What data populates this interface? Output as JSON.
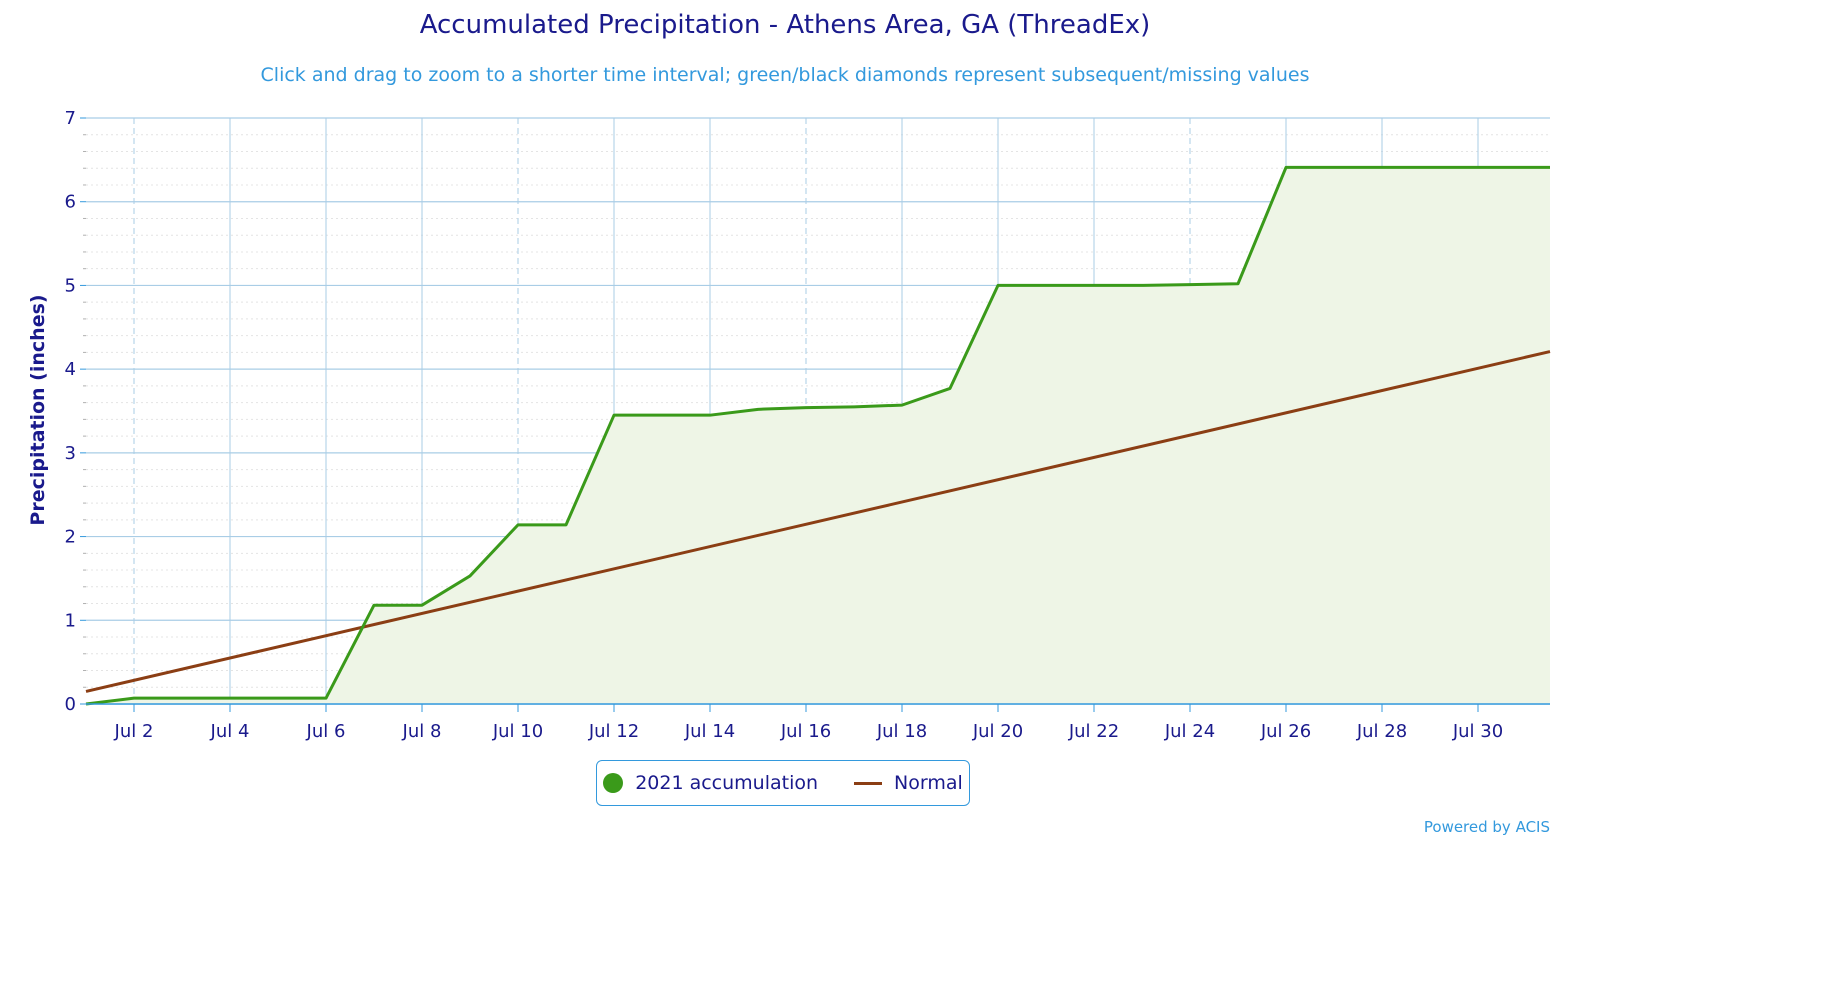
{
  "chart_data": {
    "type": "area",
    "title": "Accumulated Precipitation - Athens Area, GA (ThreadEx)",
    "subtitle": "Click and drag to zoom to a shorter time interval; green/black diamonds represent subsequent/missing values",
    "ylabel": "Precipitation (inches)",
    "xlabel": "",
    "ylim": [
      0,
      7
    ],
    "xlim": [
      1,
      31.5
    ],
    "y_ticks": [
      "0",
      "1",
      "2",
      "3",
      "4",
      "5",
      "6",
      "7"
    ],
    "x_ticks": [
      {
        "day": 2,
        "label": "Jul 2"
      },
      {
        "day": 4,
        "label": "Jul 4"
      },
      {
        "day": 6,
        "label": "Jul 6"
      },
      {
        "day": 8,
        "label": "Jul 8"
      },
      {
        "day": 10,
        "label": "Jul 10"
      },
      {
        "day": 12,
        "label": "Jul 12"
      },
      {
        "day": 14,
        "label": "Jul 14"
      },
      {
        "day": 16,
        "label": "Jul 16"
      },
      {
        "day": 18,
        "label": "Jul 18"
      },
      {
        "day": 20,
        "label": "Jul 20"
      },
      {
        "day": 22,
        "label": "Jul 22"
      },
      {
        "day": 24,
        "label": "Jul 24"
      },
      {
        "day": 26,
        "label": "Jul 26"
      },
      {
        "day": 28,
        "label": "Jul 28"
      },
      {
        "day": 30,
        "label": "Jul 30"
      }
    ],
    "grid": true,
    "legend_position": "bottom-center",
    "series": [
      {
        "name": "2021 accumulation",
        "color": "#3a9a1a",
        "fill": "#eef5e6",
        "points": [
          [
            1,
            0.0
          ],
          [
            2,
            0.07
          ],
          [
            3,
            0.07
          ],
          [
            4,
            0.07
          ],
          [
            5,
            0.07
          ],
          [
            6,
            0.07
          ],
          [
            7,
            1.18
          ],
          [
            8,
            1.18
          ],
          [
            9,
            1.53
          ],
          [
            10,
            2.14
          ],
          [
            11,
            2.14
          ],
          [
            12,
            3.45
          ],
          [
            13,
            3.45
          ],
          [
            14,
            3.45
          ],
          [
            15,
            3.52
          ],
          [
            16,
            3.54
          ],
          [
            17,
            3.55
          ],
          [
            18,
            3.57
          ],
          [
            19,
            3.77
          ],
          [
            20,
            5.0
          ],
          [
            21,
            5.0
          ],
          [
            22,
            5.0
          ],
          [
            23,
            5.0
          ],
          [
            24,
            5.01
          ],
          [
            25,
            5.02
          ],
          [
            26,
            6.41
          ],
          [
            27,
            6.41
          ],
          [
            28,
            6.41
          ],
          [
            29,
            6.41
          ],
          [
            30,
            6.41
          ],
          [
            31,
            6.41
          ],
          [
            31.5,
            6.41
          ]
        ]
      },
      {
        "name": "Normal",
        "color": "#8b3e14",
        "points": [
          [
            1,
            0.15
          ],
          [
            31.5,
            4.21
          ]
        ]
      }
    ]
  },
  "credits": "Powered by ACIS"
}
